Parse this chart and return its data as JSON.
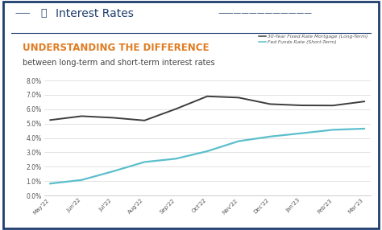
{
  "title_main": "Interest Rates",
  "title_bold": "UNDERSTANDING THE DIFFERENCE",
  "title_sub": "between long-term and short-term interest rates",
  "x_labels": [
    "May'22",
    "Jun'22",
    "Jul'22",
    "Aug'22",
    "Sep'22",
    "Oct'22",
    "Nov'22",
    "Dec'22",
    "Jan'23",
    "Feb'23",
    "Mar'23"
  ],
  "long_term": [
    5.25,
    5.52,
    5.41,
    5.22,
    6.02,
    6.9,
    6.81,
    6.36,
    6.27,
    6.26,
    6.54
  ],
  "short_term": [
    0.83,
    1.08,
    1.68,
    2.33,
    2.56,
    3.08,
    3.78,
    4.1,
    4.33,
    4.57,
    4.65
  ],
  "long_color": "#3d3d3d",
  "short_color": "#5bbfcc",
  "ylim": [
    0.0,
    8.0
  ],
  "yticks": [
    0.0,
    1.0,
    2.0,
    3.0,
    4.0,
    5.0,
    6.0,
    7.0,
    8.0
  ],
  "legend_long": "30-Year Fixed Rate Mortgage (Long-Term)",
  "legend_short": "Fed Funds Rate (Short-Term)",
  "bg_color": "#ffffff",
  "border_color": "#1f3d6e",
  "orange_color": "#e07b20",
  "navy_color": "#1f3d6e",
  "gray_text": "#555555",
  "sub_text_color": "#444444"
}
